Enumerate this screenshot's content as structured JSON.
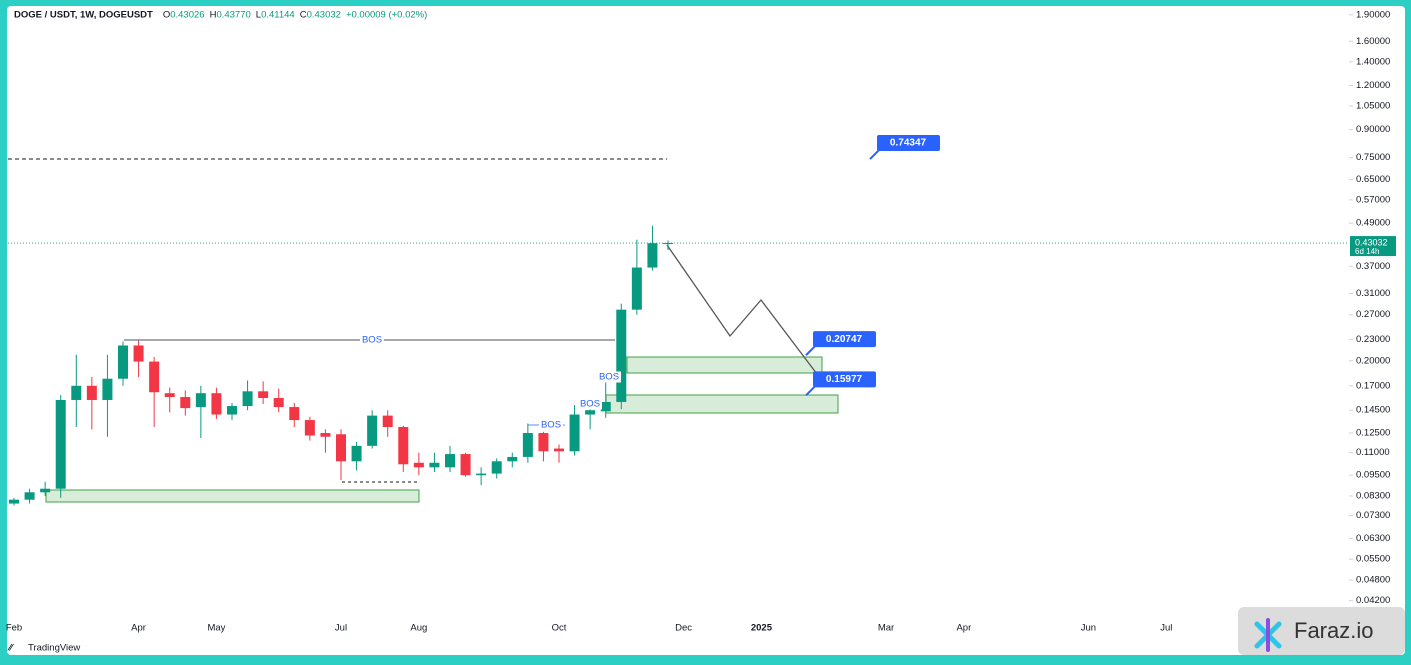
{
  "header": {
    "symbol": "DOGE / USDT, 1W, DOGEUSDT",
    "ohlc": [
      {
        "key": "O",
        "value": "0.43026"
      },
      {
        "key": "H",
        "value": "0.43770"
      },
      {
        "key": "L",
        "value": "0.41144"
      },
      {
        "key": "C",
        "value": "0.43032"
      }
    ],
    "change": "+0.00009 (+0.02%)"
  },
  "chart_data": {
    "type": "candlestick",
    "categories": [
      "Feb",
      null,
      null,
      null,
      null,
      null,
      null,
      null,
      "Apr",
      null,
      null,
      null,
      null,
      "May",
      null,
      null,
      null,
      null,
      null,
      null,
      null,
      "Jul",
      null,
      null,
      null,
      null,
      "Aug",
      null,
      null,
      null,
      null,
      null,
      null,
      null,
      null,
      "Oct",
      null,
      null,
      null,
      null,
      null,
      null,
      null,
      "Dec",
      null,
      null,
      null,
      null,
      "2025",
      null,
      null,
      null,
      null,
      null,
      null,
      null,
      "Mar",
      null,
      null,
      null,
      null,
      "Apr",
      null,
      null,
      null,
      null,
      null,
      null,
      null,
      "Jun",
      null,
      null,
      null,
      null,
      "Jul"
    ],
    "open": [
      0.079,
      0.081,
      0.085,
      0.087,
      0.155,
      0.17,
      0.155,
      0.178,
      0.221,
      0.199,
      0.162,
      0.158,
      0.148,
      0.162,
      0.141,
      0.149,
      0.164,
      0.157,
      0.148,
      0.136,
      0.125,
      0.124,
      0.104,
      0.115,
      0.14,
      0.13,
      0.103,
      0.1,
      0.1,
      0.109,
      0.095,
      0.096,
      0.104,
      0.107,
      0.125,
      0.113,
      0.111,
      0.141,
      0.144,
      0.153,
      0.279,
      0.367,
      0.43026,
      null,
      null,
      null,
      null,
      null,
      null,
      null,
      null,
      null,
      null,
      null,
      null,
      null,
      null,
      null,
      null,
      null,
      null,
      null,
      null,
      null,
      null,
      null,
      null,
      null,
      null,
      null,
      null,
      null,
      null,
      null,
      null
    ],
    "high": [
      0.082,
      0.087,
      0.091,
      0.16,
      0.208,
      0.18,
      0.208,
      0.227,
      0.228,
      0.205,
      0.168,
      0.165,
      0.17,
      0.168,
      0.152,
      0.176,
      0.175,
      0.167,
      0.152,
      0.139,
      0.128,
      0.128,
      0.118,
      0.145,
      0.145,
      0.131,
      0.11,
      0.11,
      0.115,
      0.11,
      0.1,
      0.106,
      0.11,
      0.133,
      0.126,
      0.116,
      0.15,
      0.153,
      0.18,
      0.29,
      0.44,
      0.482,
      0.4377,
      null,
      null,
      null,
      null,
      null,
      null,
      null,
      null,
      null,
      null,
      null,
      null,
      null,
      null,
      null,
      null,
      null,
      null,
      null,
      null,
      null,
      null,
      null,
      null,
      null,
      null,
      null,
      null,
      null,
      null,
      null,
      null
    ],
    "low": [
      0.078,
      0.079,
      0.083,
      0.082,
      0.13,
      0.128,
      0.122,
      0.17,
      0.18,
      0.13,
      0.143,
      0.14,
      0.121,
      0.137,
      0.136,
      0.145,
      0.151,
      0.143,
      0.13,
      0.119,
      0.11,
      0.092,
      0.098,
      0.113,
      0.122,
      0.097,
      0.095,
      0.097,
      0.097,
      0.094,
      0.089,
      0.093,
      0.1,
      0.103,
      0.104,
      0.103,
      0.108,
      0.128,
      0.138,
      0.146,
      0.27,
      0.36,
      0.41144,
      null,
      null,
      null,
      null,
      null,
      null,
      null,
      null,
      null,
      null,
      null,
      null,
      null,
      null,
      null,
      null,
      null,
      null,
      null,
      null,
      null,
      null,
      null,
      null,
      null,
      null,
      null,
      null,
      null,
      null,
      null,
      null
    ],
    "close": [
      0.081,
      0.085,
      0.087,
      0.155,
      0.17,
      0.155,
      0.178,
      0.221,
      0.199,
      0.163,
      0.158,
      0.147,
      0.162,
      0.141,
      0.149,
      0.164,
      0.157,
      0.148,
      0.136,
      0.123,
      0.122,
      0.104,
      0.115,
      0.14,
      0.13,
      0.102,
      0.1,
      0.103,
      0.109,
      0.095,
      0.096,
      0.104,
      0.107,
      0.125,
      0.111,
      0.111,
      0.141,
      0.145,
      0.153,
      0.279,
      0.367,
      0.43,
      0.43032,
      null,
      null,
      null,
      null,
      null,
      null,
      null,
      null,
      null,
      null,
      null,
      null,
      null,
      null,
      null,
      null,
      null,
      null,
      null,
      null,
      null,
      null,
      null,
      null,
      null,
      null,
      null,
      null,
      null,
      null,
      null,
      null
    ],
    "up_color": "#089981",
    "down_color": "#f23645",
    "log_scale": true,
    "ylim": [
      0.038,
      2.0
    ],
    "yticks": [
      {
        "value": 1.9,
        "label": "1.90000"
      },
      {
        "value": 1.6,
        "label": "1.60000"
      },
      {
        "value": 1.4,
        "label": "1.40000"
      },
      {
        "value": 1.2,
        "label": "1.20000"
      },
      {
        "value": 1.05,
        "label": "1.05000"
      },
      {
        "value": 0.9,
        "label": "0.90000"
      },
      {
        "value": 0.75,
        "label": "0.75000"
      },
      {
        "value": 0.65,
        "label": "0.65000"
      },
      {
        "value": 0.57,
        "label": "0.57000"
      },
      {
        "value": 0.49,
        "label": "0.49000"
      },
      {
        "value": 0.37,
        "label": "0.37000"
      },
      {
        "value": 0.31,
        "label": "0.31000"
      },
      {
        "value": 0.27,
        "label": "0.27000"
      },
      {
        "value": 0.23,
        "label": "0.23000"
      },
      {
        "value": 0.2,
        "label": "0.20000"
      },
      {
        "value": 0.17,
        "label": "0.17000"
      },
      {
        "value": 0.145,
        "label": "0.14500"
      },
      {
        "value": 0.125,
        "label": "0.12500"
      },
      {
        "value": 0.11,
        "label": "0.11000"
      },
      {
        "value": 0.095,
        "label": "0.09500"
      },
      {
        "value": 0.083,
        "label": "0.08300"
      },
      {
        "value": 0.073,
        "label": "0.07300"
      },
      {
        "value": 0.063,
        "label": "0.06300"
      },
      {
        "value": 0.055,
        "label": "0.05500"
      },
      {
        "value": 0.048,
        "label": "0.04800"
      },
      {
        "value": 0.042,
        "label": "0.04200"
      }
    ],
    "annotations": [
      "BOS",
      "BOS",
      "BOS",
      "BOS"
    ],
    "price_labels": [
      {
        "value": 0.74347,
        "label": "0.74347"
      },
      {
        "value": 0.20747,
        "label": "0.20747"
      },
      {
        "value": 0.15977,
        "label": "0.15977"
      }
    ],
    "last_price": {
      "value": 0.43032,
      "label": "0.43032",
      "countdown": "6d 14h"
    }
  },
  "watermark": "TradingView",
  "badge": "Faraz.io"
}
